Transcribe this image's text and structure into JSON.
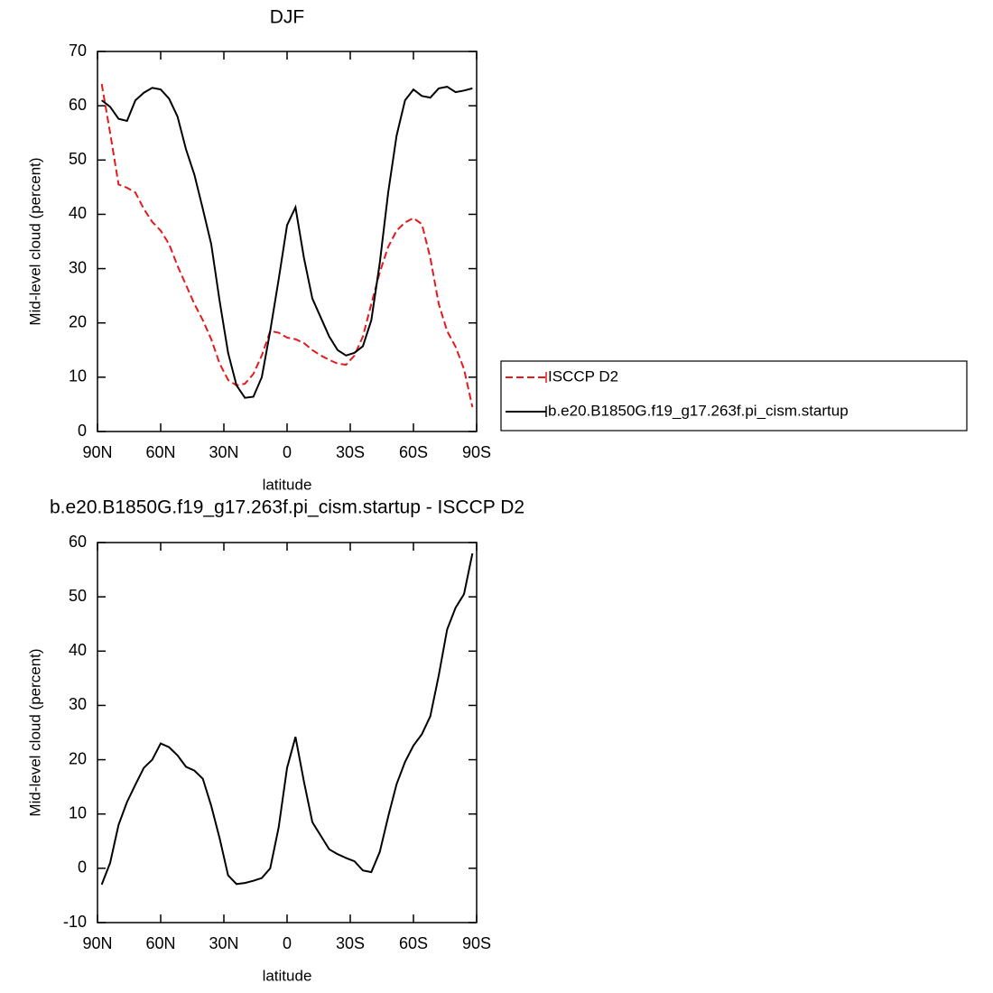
{
  "chart_data": [
    {
      "type": "line",
      "title": "DJF",
      "xlabel": "latitude",
      "ylabel": "Mid-level cloud (percent)",
      "x": [
        88,
        84,
        80,
        76,
        72,
        68,
        64,
        60,
        56,
        52,
        48,
        44,
        40,
        36,
        32,
        28,
        24,
        20,
        16,
        12,
        8,
        4,
        0,
        -4,
        -8,
        -12,
        -16,
        -20,
        -24,
        -28,
        -32,
        -36,
        -40,
        -44,
        -48,
        -52,
        -56,
        -60,
        -64,
        -68,
        -72,
        -76,
        -80,
        -84,
        -88
      ],
      "series": [
        {
          "name": "ISCCP D2",
          "color": "#e41a1c",
          "line_style": "dashed",
          "values": [
            64.0,
            55.0,
            45.5,
            44.9,
            44.0,
            41.0,
            38.6,
            37.0,
            34.5,
            30.5,
            27.0,
            23.5,
            20.5,
            17.0,
            12.5,
            9.5,
            8.5,
            8.8,
            10.6,
            14.0,
            18.5,
            18.2,
            17.3,
            17.0,
            16.3,
            15.0,
            14.0,
            13.2,
            12.5,
            12.3,
            14.0,
            17.5,
            23.5,
            29.3,
            34.0,
            37.0,
            38.5,
            39.3,
            38.2,
            32.0,
            23.5,
            18.5,
            15.6,
            11.5,
            4.5
          ]
        },
        {
          "name": "b.e20.B1850G.f19_g17.263f.pi_cism.startup",
          "color": "#000000",
          "line_style": "solid",
          "values": [
            61.0,
            59.8,
            57.6,
            57.2,
            61.0,
            62.4,
            63.3,
            63.0,
            61.3,
            58.0,
            52.0,
            47.3,
            41.0,
            34.5,
            24.0,
            14.5,
            8.5,
            6.2,
            6.4,
            10.0,
            18.5,
            28.0,
            38.0,
            41.3,
            32.0,
            24.5,
            21.0,
            17.5,
            15.0,
            14.0,
            14.5,
            15.7,
            20.5,
            31.0,
            44.0,
            54.5,
            61.0,
            63.0,
            61.8,
            61.5,
            63.2,
            63.5,
            62.5,
            62.8,
            63.2
          ]
        }
      ],
      "xlim": [
        90,
        -90
      ],
      "xticks": [
        {
          "value": 90,
          "label": "90N"
        },
        {
          "value": 60,
          "label": "60N"
        },
        {
          "value": 30,
          "label": "30N"
        },
        0,
        {
          "value": -30,
          "label": "30S"
        },
        {
          "value": -60,
          "label": "60S"
        },
        {
          "value": -90,
          "label": "90S"
        }
      ],
      "ylim": [
        0,
        70
      ],
      "yticks": [
        0,
        10,
        20,
        30,
        40,
        50,
        60,
        70
      ],
      "legend": "right"
    },
    {
      "type": "line",
      "title": "b.e20.B1850G.f19_g17.263f.pi_cism.startup - ISCCP D2",
      "xlabel": "latitude",
      "ylabel": "Mid-level cloud (percent)",
      "x": [
        88,
        84,
        80,
        76,
        72,
        68,
        64,
        60,
        56,
        52,
        48,
        44,
        40,
        36,
        32,
        28,
        24,
        20,
        16,
        12,
        8,
        4,
        0,
        -4,
        -8,
        -12,
        -16,
        -20,
        -24,
        -28,
        -32,
        -36,
        -40,
        -44,
        -48,
        -52,
        -56,
        -60,
        -64,
        -68,
        -72,
        -76,
        -80,
        -84,
        -88
      ],
      "values": [
        -3.0,
        1.0,
        8.0,
        12.2,
        15.4,
        18.5,
        20.0,
        23.0,
        22.3,
        20.8,
        18.7,
        18.0,
        16.5,
        11.5,
        5.5,
        -1.3,
        -2.9,
        -2.7,
        -2.3,
        -1.8,
        0.0,
        7.5,
        18.5,
        24.2,
        16.0,
        8.5,
        6.0,
        3.5,
        2.6,
        1.9,
        1.3,
        -0.4,
        -0.7,
        3.0,
        9.5,
        15.5,
        19.6,
        22.6,
        24.7,
        28.0,
        35.5,
        44.0,
        48.0,
        50.5,
        58.0
      ],
      "color": "#000000",
      "xlim": [
        90,
        -90
      ],
      "xticks": [
        {
          "value": 90,
          "label": "90N"
        },
        {
          "value": 60,
          "label": "60N"
        },
        {
          "value": 30,
          "label": "30N"
        },
        0,
        {
          "value": -30,
          "label": "30S"
        },
        {
          "value": -60,
          "label": "60S"
        },
        {
          "value": -90,
          "label": "90S"
        }
      ],
      "ylim": [
        -10,
        60
      ],
      "yticks": [
        -10,
        0,
        10,
        20,
        30,
        40,
        50,
        60
      ]
    }
  ]
}
